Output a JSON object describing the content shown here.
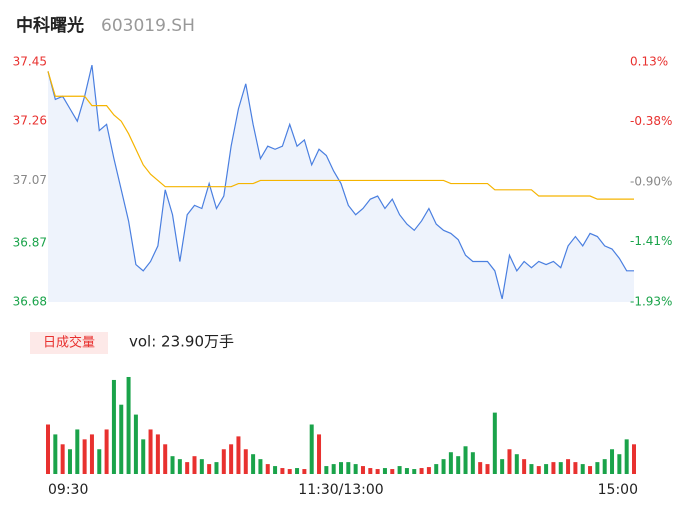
{
  "header": {
    "name": "中科曙光",
    "code": "603019.SH"
  },
  "chart_data": [
    {
      "type": "line",
      "xlim": [
        0,
        80
      ],
      "xticks": [
        {
          "value": 0,
          "label": "09:30"
        },
        {
          "value": 40,
          "label": "11:30/13:00"
        },
        {
          "value": 80,
          "label": "15:00"
        }
      ],
      "ylim": [
        36.68,
        37.45
      ],
      "yticks": [
        37.45,
        37.26,
        37.07,
        36.87,
        36.68
      ],
      "ytick_colors": [
        "#e8312f",
        "#e8312f",
        "#888888",
        "#1aa34a",
        "#1aa34a"
      ],
      "y2lim": [
        -1.93,
        0.13
      ],
      "y2ticks": [
        {
          "value": 0.13,
          "label": "0.13%"
        },
        {
          "value": -0.38,
          "label": "-0.38%"
        },
        {
          "value": -0.9,
          "label": "-0.90%"
        },
        {
          "value": -1.41,
          "label": "-1.41%"
        },
        {
          "value": -1.93,
          "label": "-1.93%"
        }
      ],
      "area_fill": "#eef3fc",
      "series": [
        {
          "color": "#4a7fe0",
          "values": [
            37.42,
            37.33,
            37.34,
            37.3,
            37.26,
            37.34,
            37.44,
            37.23,
            37.25,
            37.14,
            37.04,
            36.94,
            36.8,
            36.78,
            36.81,
            36.86,
            37.04,
            36.96,
            36.81,
            36.96,
            36.99,
            36.98,
            37.06,
            36.98,
            37.02,
            37.18,
            37.3,
            37.38,
            37.25,
            37.14,
            37.18,
            37.17,
            37.18,
            37.25,
            37.18,
            37.2,
            37.12,
            37.17,
            37.15,
            37.1,
            37.06,
            36.99,
            36.96,
            36.98,
            37.01,
            37.02,
            36.98,
            37.01,
            36.96,
            36.93,
            36.91,
            36.94,
            36.98,
            36.93,
            36.91,
            36.9,
            36.88,
            36.83,
            36.81,
            36.81,
            36.81,
            36.78,
            36.69,
            36.83,
            36.78,
            36.81,
            36.79,
            36.81,
            36.8,
            36.81,
            36.79,
            36.86,
            36.89,
            36.86,
            36.9,
            36.89,
            36.86,
            36.85,
            36.82,
            36.78,
            36.78
          ]
        },
        {
          "color": "#f5b400",
          "values": [
            37.42,
            37.34,
            37.34,
            37.34,
            37.34,
            37.34,
            37.31,
            37.31,
            37.31,
            37.28,
            37.26,
            37.22,
            37.17,
            37.12,
            37.09,
            37.07,
            37.05,
            37.05,
            37.05,
            37.05,
            37.05,
            37.05,
            37.05,
            37.05,
            37.05,
            37.05,
            37.06,
            37.06,
            37.06,
            37.07,
            37.07,
            37.07,
            37.07,
            37.07,
            37.07,
            37.07,
            37.07,
            37.07,
            37.07,
            37.07,
            37.07,
            37.07,
            37.07,
            37.07,
            37.07,
            37.07,
            37.07,
            37.07,
            37.07,
            37.07,
            37.07,
            37.07,
            37.07,
            37.07,
            37.07,
            37.06,
            37.06,
            37.06,
            37.06,
            37.06,
            37.06,
            37.04,
            37.04,
            37.04,
            37.04,
            37.04,
            37.04,
            37.02,
            37.02,
            37.02,
            37.02,
            37.02,
            37.02,
            37.02,
            37.02,
            37.01,
            37.01,
            37.01,
            37.01,
            37.01,
            37.01
          ]
        }
      ]
    },
    {
      "type": "bar",
      "legend_badge": "日成交量",
      "volume_label": "vol: 23.90万手",
      "ylim": [
        0,
        100
      ],
      "up_color": "#e8312f",
      "down_color": "#1aa34a",
      "values": [
        50,
        40,
        30,
        25,
        45,
        35,
        40,
        25,
        45,
        95,
        70,
        98,
        60,
        35,
        45,
        40,
        30,
        18,
        15,
        12,
        18,
        15,
        10,
        12,
        25,
        30,
        38,
        25,
        20,
        15,
        10,
        8,
        6,
        5,
        6,
        5,
        50,
        40,
        8,
        10,
        12,
        12,
        10,
        8,
        6,
        5,
        6,
        5,
        8,
        6,
        5,
        6,
        7,
        10,
        15,
        22,
        18,
        28,
        22,
        12,
        10,
        62,
        15,
        25,
        20,
        15,
        10,
        8,
        10,
        12,
        12,
        15,
        12,
        10,
        8,
        12,
        15,
        25,
        20,
        35,
        30
      ]
    }
  ]
}
